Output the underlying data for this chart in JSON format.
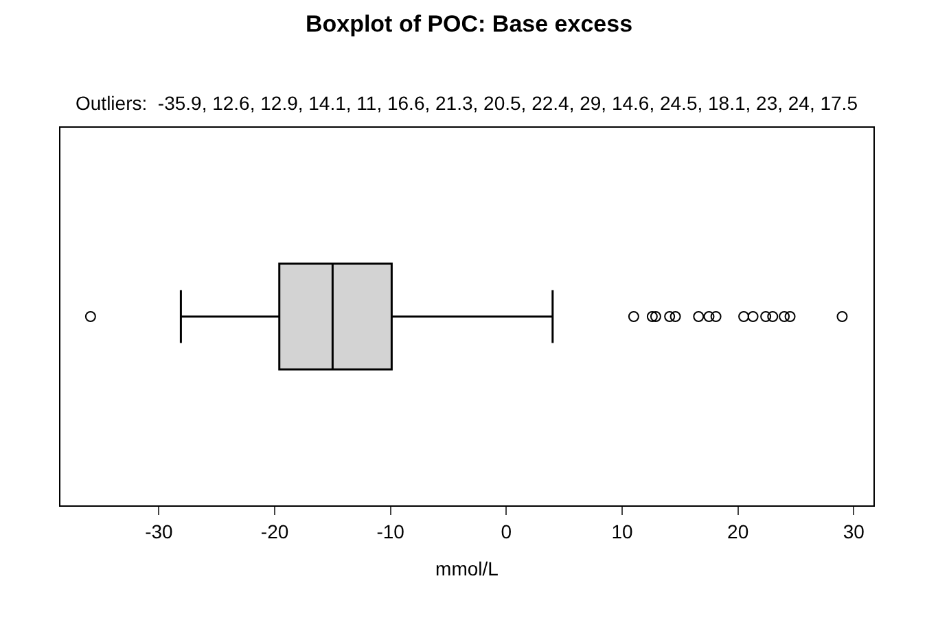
{
  "chart_data": {
    "type": "box",
    "title": "Boxplot of POC: Base excess",
    "subtitle": "Outliers:  -35.9, 12.6, 12.9, 14.1, 11, 16.6, 21.3, 20.5, 22.4, 29, 14.6, 24.5, 18.1, 23, 24, 17.5",
    "xlabel": "mmol/L",
    "orientation": "horizontal",
    "categories": [
      null
    ],
    "boxes": [
      {
        "low": -28.1,
        "q1": -19.6,
        "median": -15.0,
        "q3": -9.9,
        "high": 4.0,
        "outliers": [
          -35.9,
          12.6,
          12.9,
          14.1,
          11,
          16.6,
          21.3,
          20.5,
          22.4,
          29,
          14.6,
          24.5,
          18.1,
          23,
          24,
          17.5
        ]
      }
    ],
    "color": "#d3d3d3",
    "xlim": [
      -38.5,
      31.7
    ],
    "xticks": [
      -30,
      -20,
      -10,
      0,
      10,
      20,
      30
    ],
    "tick_labels": "x"
  }
}
